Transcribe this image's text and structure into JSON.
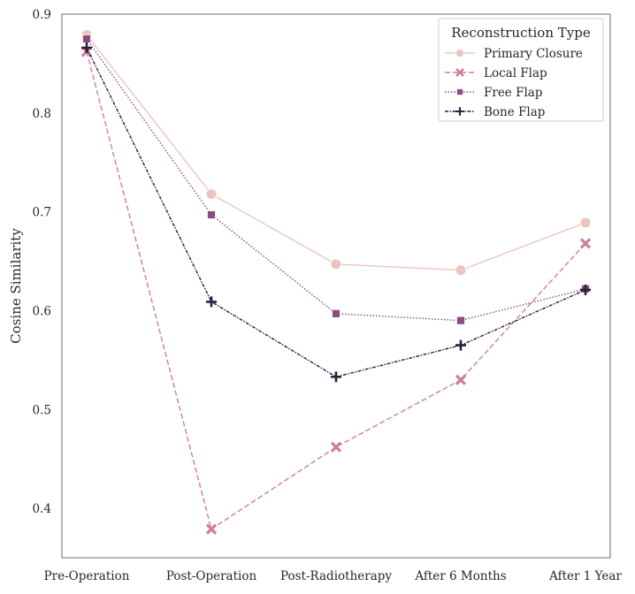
{
  "chart_data": {
    "type": "line",
    "title": "",
    "xlabel": "",
    "ylabel": "Cosine Similarity",
    "categories": [
      "Pre-Operation",
      "Post-Operation",
      "Post-Radiotherapy",
      "After 6 Months",
      "After 1 Year"
    ],
    "ylim": [
      0.35,
      0.9
    ],
    "yticks": [
      "0.4",
      "0.5",
      "0.6",
      "0.7",
      "0.8",
      "0.9"
    ],
    "grid": false,
    "legend": {
      "title": "Reconstruction Type",
      "placement": "top-right"
    },
    "series": [
      {
        "name": "Primary Closure",
        "values": [
          0.879,
          0.718,
          0.647,
          0.641,
          0.689
        ],
        "color": "#ebc6c0",
        "dash": "solid",
        "marker": "circle"
      },
      {
        "name": "Local Flap",
        "values": [
          0.862,
          0.379,
          0.462,
          0.53,
          0.668
        ],
        "color": "#cf7f92",
        "dash": "dashed",
        "marker": "x"
      },
      {
        "name": "Free Flap",
        "values": [
          0.875,
          0.697,
          0.597,
          0.59,
          0.622
        ],
        "color": "#8a4c81",
        "dash": "dotted",
        "marker": "square"
      },
      {
        "name": "Bone Flap",
        "values": [
          0.866,
          0.609,
          0.533,
          0.565,
          0.621
        ],
        "color": "#2d1e3e",
        "dash": "dashdot",
        "marker": "plus"
      }
    ]
  }
}
